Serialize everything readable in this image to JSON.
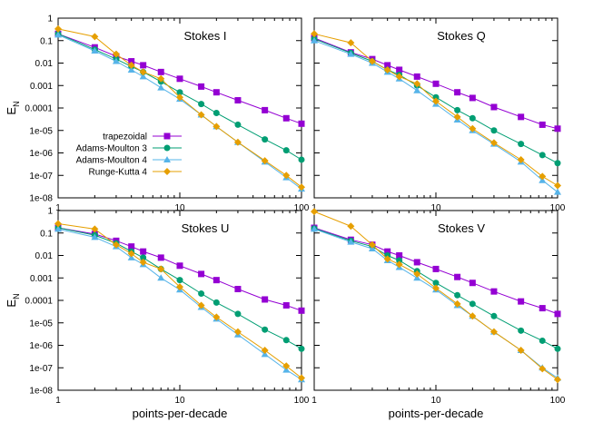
{
  "chart_data": [
    {
      "type": "line",
      "title": "Stokes I",
      "xlabel": "points-per-decade",
      "ylabel": "E_N",
      "xscale": "log",
      "yscale": "log",
      "xlim": [
        1,
        100
      ],
      "ylim": [
        1e-08,
        1
      ],
      "legend_position": "bottom-left",
      "series": [
        {
          "name": "trapezoidal",
          "x": [
            1,
            2,
            3,
            4,
            5,
            7,
            10,
            15,
            20,
            30,
            50,
            75,
            100
          ],
          "y": [
            0.2,
            0.05,
            0.02,
            0.012,
            0.008,
            0.004,
            0.002,
            0.0009,
            0.0005,
            0.00022,
            8e-05,
            3.5e-05,
            2e-05
          ]
        },
        {
          "name": "Adams-Moulton 3",
          "x": [
            1,
            2,
            3,
            4,
            5,
            7,
            10,
            15,
            20,
            30,
            50,
            75,
            100
          ],
          "y": [
            0.2,
            0.04,
            0.015,
            0.007,
            0.004,
            0.0015,
            0.0005,
            0.00015,
            6e-05,
            1.8e-05,
            4e-06,
            1.3e-06,
            5e-07
          ]
        },
        {
          "name": "Adams-Moulton 4",
          "x": [
            1,
            2,
            3,
            4,
            5,
            7,
            10,
            15,
            20,
            30,
            50,
            75,
            100
          ],
          "y": [
            0.18,
            0.035,
            0.012,
            0.005,
            0.0025,
            0.0008,
            0.00025,
            5e-05,
            1.5e-05,
            3e-06,
            4e-07,
            8e-08,
            2.5e-08
          ]
        },
        {
          "name": "Runge-Kutta 4",
          "x": [
            1,
            2,
            3,
            4,
            5,
            7,
            10,
            15,
            20,
            30,
            50,
            75,
            100
          ],
          "y": [
            0.33,
            0.15,
            0.025,
            0.008,
            0.004,
            0.002,
            0.0003,
            5e-05,
            1.5e-05,
            3e-06,
            4.5e-07,
            1e-07,
            3e-08
          ]
        }
      ]
    },
    {
      "type": "line",
      "title": "Stokes Q",
      "xlabel": "points-per-decade",
      "ylabel": "",
      "xscale": "log",
      "yscale": "log",
      "xlim": [
        1,
        100
      ],
      "ylim": [
        1e-08,
        1
      ],
      "series": [
        {
          "name": "trapezoidal",
          "x": [
            1,
            2,
            3,
            4,
            5,
            7,
            10,
            15,
            20,
            30,
            50,
            75,
            100
          ],
          "y": [
            0.13,
            0.03,
            0.015,
            0.008,
            0.005,
            0.0025,
            0.0012,
            0.0005,
            0.00028,
            0.00011,
            4e-05,
            1.8e-05,
            1.2e-05
          ]
        },
        {
          "name": "Adams-Moulton 3",
          "x": [
            1,
            2,
            3,
            4,
            5,
            7,
            10,
            15,
            20,
            30,
            50,
            75,
            100
          ],
          "y": [
            0.12,
            0.028,
            0.012,
            0.005,
            0.003,
            0.001,
            0.0003,
            8e-05,
            3.5e-05,
            1e-05,
            2.5e-06,
            8e-07,
            3.5e-07
          ]
        },
        {
          "name": "Adams-Moulton 4",
          "x": [
            1,
            2,
            3,
            4,
            5,
            7,
            10,
            15,
            20,
            30,
            50,
            75,
            100
          ],
          "y": [
            0.1,
            0.025,
            0.01,
            0.004,
            0.002,
            0.0006,
            0.00015,
            3e-05,
            1e-05,
            2.5e-06,
            4e-07,
            6e-08,
            1.8e-08
          ]
        },
        {
          "name": "Runge-Kutta 4",
          "x": [
            1,
            2,
            3,
            4,
            5,
            7,
            10,
            15,
            20,
            30,
            50,
            75,
            100
          ],
          "y": [
            0.2,
            0.08,
            0.012,
            0.005,
            0.0025,
            0.0012,
            0.0002,
            4e-05,
            1.2e-05,
            2.8e-06,
            5e-07,
            9e-08,
            3.5e-08
          ]
        }
      ]
    },
    {
      "type": "line",
      "title": "Stokes U",
      "xlabel": "points-per-decade",
      "ylabel": "E_N",
      "xscale": "log",
      "yscale": "log",
      "xlim": [
        1,
        100
      ],
      "ylim": [
        1e-08,
        1
      ],
      "series": [
        {
          "name": "trapezoidal",
          "x": [
            1,
            2,
            3,
            4,
            5,
            7,
            10,
            15,
            20,
            30,
            50,
            75,
            100
          ],
          "y": [
            0.17,
            0.09,
            0.045,
            0.025,
            0.015,
            0.008,
            0.0035,
            0.0015,
            0.0008,
            0.00032,
            0.00011,
            6e-05,
            3.5e-05
          ]
        },
        {
          "name": "Adams-Moulton 3",
          "x": [
            1,
            2,
            3,
            4,
            5,
            7,
            10,
            15,
            20,
            30,
            50,
            75,
            100
          ],
          "y": [
            0.17,
            0.08,
            0.035,
            0.015,
            0.008,
            0.0025,
            0.0008,
            0.0002,
            8e-05,
            2.5e-05,
            5e-06,
            1.7e-06,
            7e-07
          ]
        },
        {
          "name": "Adams-Moulton 4",
          "x": [
            1,
            2,
            3,
            4,
            5,
            7,
            10,
            15,
            20,
            30,
            50,
            75,
            100
          ],
          "y": [
            0.15,
            0.065,
            0.025,
            0.008,
            0.004,
            0.001,
            0.0003,
            5e-05,
            1.5e-05,
            3e-06,
            4e-07,
            8e-08,
            3e-08
          ]
        },
        {
          "name": "Runge-Kutta 4",
          "x": [
            1,
            2,
            3,
            4,
            5,
            7,
            10,
            15,
            20,
            30,
            50,
            75,
            100
          ],
          "y": [
            0.26,
            0.15,
            0.03,
            0.012,
            0.005,
            0.0025,
            0.0004,
            6e-05,
            1.8e-05,
            4e-06,
            6e-07,
            1.2e-07,
            3.5e-08
          ]
        }
      ]
    },
    {
      "type": "line",
      "title": "Stokes V",
      "xlabel": "points-per-decade",
      "ylabel": "",
      "xscale": "log",
      "yscale": "log",
      "xlim": [
        1,
        100
      ],
      "ylim": [
        1e-08,
        1
      ],
      "series": [
        {
          "name": "trapezoidal",
          "x": [
            1,
            2,
            3,
            4,
            5,
            7,
            10,
            15,
            20,
            30,
            50,
            75,
            100
          ],
          "y": [
            0.17,
            0.05,
            0.03,
            0.015,
            0.01,
            0.005,
            0.0025,
            0.0011,
            0.0006,
            0.00025,
            9e-05,
            4.5e-05,
            2.5e-05
          ]
        },
        {
          "name": "Adams-Moulton 3",
          "x": [
            1,
            2,
            3,
            4,
            5,
            7,
            10,
            15,
            20,
            30,
            50,
            75,
            100
          ],
          "y": [
            0.16,
            0.045,
            0.025,
            0.01,
            0.006,
            0.002,
            0.0006,
            0.00017,
            7e-05,
            2e-05,
            4.5e-06,
            1.6e-06,
            7e-07
          ]
        },
        {
          "name": "Adams-Moulton 4",
          "x": [
            1,
            2,
            3,
            4,
            5,
            7,
            10,
            15,
            20,
            30,
            50,
            75,
            100
          ],
          "y": [
            0.15,
            0.04,
            0.02,
            0.006,
            0.003,
            0.001,
            0.0003,
            6e-05,
            2e-05,
            4e-06,
            6e-07,
            1e-07,
            3.5e-08
          ]
        },
        {
          "name": "Runge-Kutta 4",
          "x": [
            1,
            2,
            3,
            4,
            5,
            7,
            10,
            15,
            20,
            30,
            50,
            75,
            100
          ],
          "y": [
            0.9,
            0.2,
            0.03,
            0.007,
            0.004,
            0.0015,
            0.00035,
            7e-05,
            2e-05,
            4e-06,
            6e-07,
            9e-08,
            3e-08
          ]
        }
      ]
    }
  ],
  "series_styles": [
    {
      "name": "trapezoidal",
      "color": "#9400d3",
      "marker": "square"
    },
    {
      "name": "Adams-Moulton 3",
      "color": "#009e73",
      "marker": "circle"
    },
    {
      "name": "Adams-Moulton 4",
      "color": "#56b4e9",
      "marker": "triangle"
    },
    {
      "name": "Runge-Kutta 4",
      "color": "#e69f00",
      "marker": "diamond"
    }
  ],
  "x_ticks": [
    1,
    10,
    100
  ],
  "y_ticks": [
    1,
    0.1,
    0.01,
    0.001,
    0.0001,
    1e-05,
    1e-06,
    1e-07,
    1e-08
  ],
  "y_tick_labels": [
    "1",
    "0.1",
    "0.01",
    "0.001",
    "0.0001",
    "1e-05",
    "1e-06",
    "1e-07",
    "1e-08"
  ],
  "x_tick_labels": [
    "1",
    "10",
    "100"
  ],
  "ylabel_base": "E",
  "ylabel_sub": "N"
}
